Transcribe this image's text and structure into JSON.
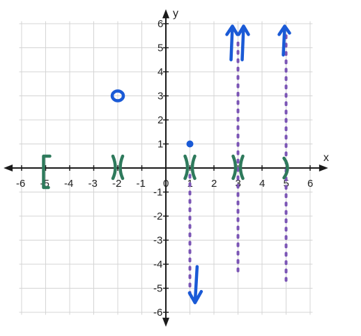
{
  "chart_data": {
    "type": "scatter",
    "title": "",
    "xlabel": "x",
    "ylabel": "y",
    "xlim": [
      -6.5,
      6.5
    ],
    "ylim": [
      -6,
      6
    ],
    "x_ticks": [
      -6,
      -5,
      -4,
      -3,
      -2,
      -1,
      0,
      1,
      2,
      3,
      4,
      5,
      6
    ],
    "y_ticks": [
      -6,
      -5,
      -4,
      -3,
      -2,
      -1,
      1,
      2,
      3,
      4,
      5,
      6
    ],
    "x_tick_labels": [
      "-6",
      "-5",
      "-4",
      "-3",
      "-2",
      "-1",
      "0",
      "1",
      "2",
      "3",
      "4",
      "5",
      "6"
    ],
    "y_tick_labels": [
      "-6",
      "-5",
      "-4",
      "-3",
      "-2",
      "-1",
      "1",
      "2",
      "3",
      "4",
      "5",
      "6"
    ],
    "grid": true,
    "hand_drawn_points": [
      {
        "x": -2,
        "y": 3,
        "style": "open"
      },
      {
        "x": 1,
        "y": 1,
        "style": "closed"
      }
    ],
    "x_axis_marks": [
      {
        "x": -5,
        "mark": "bracket-left"
      },
      {
        "x": -2,
        "mark": "hole"
      },
      {
        "x": 1,
        "mark": "hole"
      },
      {
        "x": 3,
        "mark": "hole"
      },
      {
        "x": 5,
        "mark": "paren-right"
      }
    ],
    "vertical_dashed_lines": [
      {
        "x": 1,
        "from_y": -0.3,
        "to_y": -5.4
      },
      {
        "x": 3,
        "from_y": 5.2,
        "to_y": -4.5
      },
      {
        "x": 5,
        "from_y": 5.5,
        "to_y": -4.7
      }
    ],
    "arrows": [
      {
        "x": 1.3,
        "direction": "down"
      },
      {
        "x": 3,
        "direction": "up",
        "double": true
      },
      {
        "x": 5,
        "direction": "up"
      }
    ],
    "colors": {
      "grid": "#d4d4d4",
      "axis": "#1a1a1a",
      "points": "#1a5ad6",
      "marks": "#2e7a5c",
      "dashes": "#7b55b5"
    }
  }
}
